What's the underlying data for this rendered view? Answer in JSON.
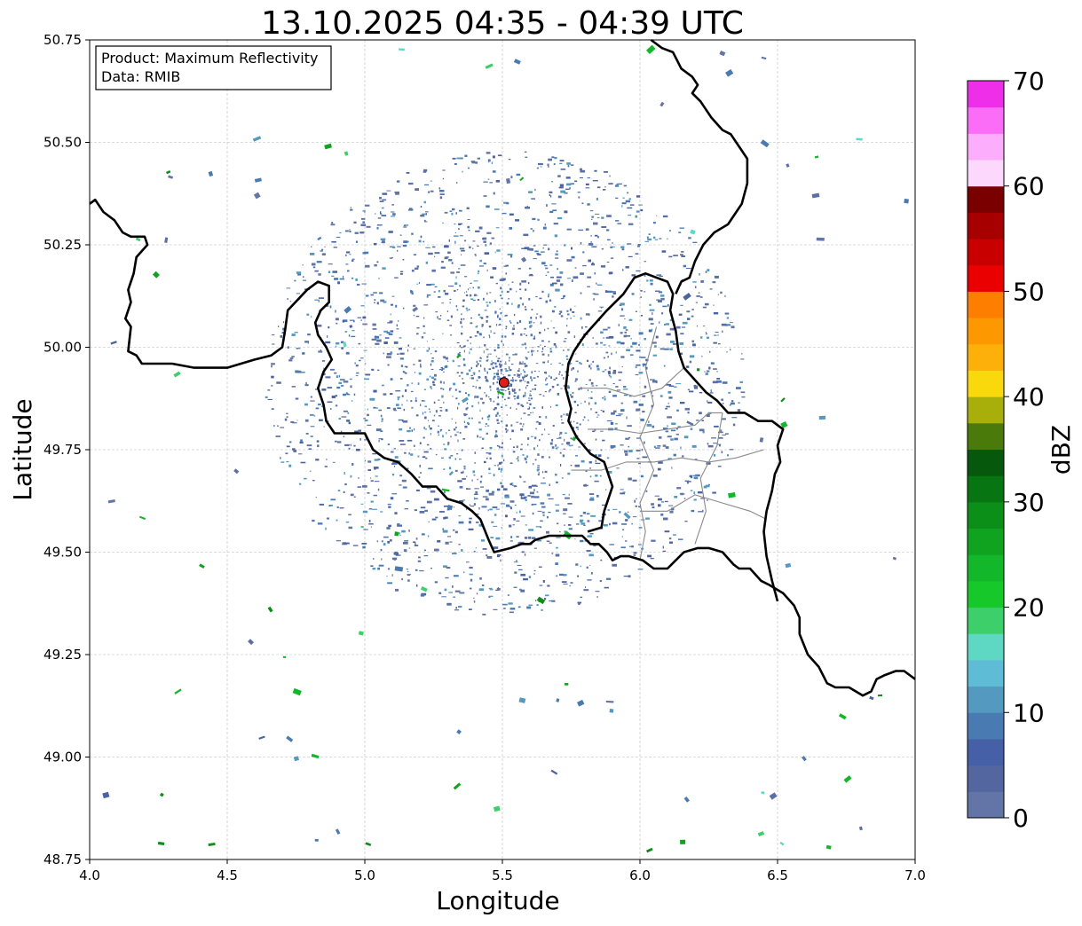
{
  "title": "13.10.2025 04:35 - 04:39 UTC",
  "info_box": {
    "product_line": "Product: Maximum Reflectivity",
    "data_line": "Data: RMIB"
  },
  "axes": {
    "xlabel": "Longitude",
    "ylabel": "Latitude",
    "xlim": [
      4.0,
      7.0
    ],
    "ylim": [
      48.75,
      50.75
    ],
    "x_ticks": [
      "4.0",
      "4.5",
      "5.0",
      "5.5",
      "6.0",
      "6.5",
      "7.0"
    ],
    "y_ticks": [
      "48.75",
      "49.00",
      "49.25",
      "49.50",
      "49.75",
      "50.00",
      "50.25",
      "50.50",
      "50.75"
    ],
    "grid": true
  },
  "radar_site": {
    "lon": 5.506,
    "lat": 49.914,
    "color": "#e21b1b"
  },
  "colorbar": {
    "label": "dBZ",
    "range": [
      0,
      70
    ],
    "ticks": [
      "0",
      "10",
      "20",
      "30",
      "40",
      "50",
      "60",
      "70"
    ],
    "step": 2.5,
    "colors": [
      "#6275a6",
      "#5366a0",
      "#4560a6",
      "#4a7ab2",
      "#5399c0",
      "#5ebcd6",
      "#5fd8c3",
      "#3ccf6a",
      "#16c82a",
      "#12b82a",
      "#0fa31f",
      "#0c8f19",
      "#077612",
      "#06580d",
      "#4a7a0a",
      "#a8af0a",
      "#f9d90b",
      "#fdb00a",
      "#fe9800",
      "#fe7e00",
      "#ea0000",
      "#c90000",
      "#a70000",
      "#7a0000",
      "#fdd8fd",
      "#fcaefc",
      "#fb6cf7",
      "#ee2ee9"
    ]
  },
  "borders": [
    [
      [
        4.0,
        50.35
      ],
      [
        4.02,
        50.36
      ],
      [
        4.05,
        50.33
      ],
      [
        4.09,
        50.31
      ],
      [
        4.12,
        50.28
      ],
      [
        4.15,
        50.27
      ],
      [
        4.2,
        50.27
      ],
      [
        4.21,
        50.25
      ],
      [
        4.17,
        50.22
      ],
      [
        4.16,
        50.18
      ],
      [
        4.14,
        50.14
      ],
      [
        4.15,
        50.11
      ],
      [
        4.13,
        50.07
      ],
      [
        4.15,
        50.05
      ],
      [
        4.14,
        49.99
      ],
      [
        4.17,
        49.98
      ],
      [
        4.19,
        49.96
      ],
      [
        4.23,
        49.96
      ],
      [
        4.3,
        49.96
      ],
      [
        4.38,
        49.95
      ],
      [
        4.44,
        49.95
      ],
      [
        4.5,
        49.95
      ],
      [
        4.55,
        49.96
      ],
      [
        4.6,
        49.97
      ],
      [
        4.66,
        49.98
      ],
      [
        4.7,
        50.0
      ],
      [
        4.71,
        50.04
      ],
      [
        4.72,
        50.09
      ],
      [
        4.79,
        50.14
      ],
      [
        4.83,
        50.16
      ],
      [
        4.87,
        50.15
      ],
      [
        4.87,
        50.11
      ],
      [
        4.84,
        50.09
      ],
      [
        4.82,
        50.06
      ],
      [
        4.83,
        50.03
      ],
      [
        4.86,
        50.0
      ],
      [
        4.88,
        49.97
      ],
      [
        4.85,
        49.94
      ],
      [
        4.83,
        49.9
      ],
      [
        4.85,
        49.86
      ],
      [
        4.86,
        49.82
      ],
      [
        4.89,
        49.79
      ],
      [
        4.93,
        49.79
      ],
      [
        5.0,
        49.79
      ],
      [
        5.03,
        49.75
      ],
      [
        5.07,
        49.73
      ],
      [
        5.12,
        49.72
      ],
      [
        5.17,
        49.69
      ],
      [
        5.21,
        49.66
      ],
      [
        5.26,
        49.66
      ],
      [
        5.3,
        49.63
      ],
      [
        5.35,
        49.62
      ],
      [
        5.39,
        49.6
      ],
      [
        5.42,
        49.58
      ],
      [
        5.45,
        49.53
      ],
      [
        5.47,
        49.5
      ],
      [
        5.53,
        49.51
      ],
      [
        5.57,
        49.52
      ],
      [
        5.6,
        49.52
      ],
      [
        5.62,
        49.53
      ],
      [
        5.67,
        49.54
      ],
      [
        5.71,
        49.54
      ],
      [
        5.75,
        49.54
      ],
      [
        5.79,
        49.54
      ],
      [
        5.82,
        49.52
      ],
      [
        5.85,
        49.52
      ],
      [
        5.88,
        49.5
      ],
      [
        5.9,
        49.48
      ],
      [
        5.93,
        49.49
      ],
      [
        5.96,
        49.49
      ],
      [
        6.01,
        49.48
      ],
      [
        6.05,
        49.46
      ],
      [
        6.1,
        49.46
      ],
      [
        6.13,
        49.48
      ],
      [
        6.16,
        49.5
      ],
      [
        6.21,
        49.51
      ],
      [
        6.25,
        49.51
      ],
      [
        6.3,
        49.5
      ],
      [
        6.34,
        49.47
      ],
      [
        6.36,
        49.46
      ],
      [
        6.4,
        49.46
      ],
      [
        6.44,
        49.43
      ],
      [
        6.47,
        49.42
      ],
      [
        6.52,
        49.4
      ],
      [
        6.56,
        49.37
      ],
      [
        6.58,
        49.34
      ],
      [
        6.58,
        49.3
      ],
      [
        6.61,
        49.25
      ],
      [
        6.65,
        49.22
      ],
      [
        6.68,
        49.18
      ],
      [
        6.71,
        49.17
      ],
      [
        6.76,
        49.17
      ],
      [
        6.81,
        49.15
      ],
      [
        6.84,
        49.16
      ],
      [
        6.86,
        49.19
      ],
      [
        6.89,
        49.2
      ],
      [
        6.93,
        49.21
      ],
      [
        6.96,
        49.21
      ],
      [
        7.0,
        49.19
      ]
    ],
    [
      [
        6.5,
        49.38
      ],
      [
        6.48,
        49.43
      ],
      [
        6.46,
        49.49
      ],
      [
        6.45,
        49.55
      ],
      [
        6.46,
        49.6
      ],
      [
        6.48,
        49.65
      ],
      [
        6.49,
        49.69
      ],
      [
        6.51,
        49.72
      ],
      [
        6.5,
        49.76
      ],
      [
        6.52,
        49.8
      ],
      [
        6.48,
        49.82
      ],
      [
        6.43,
        49.82
      ],
      [
        6.38,
        49.84
      ],
      [
        6.32,
        49.84
      ],
      [
        6.28,
        49.87
      ],
      [
        6.24,
        49.89
      ],
      [
        6.2,
        49.92
      ],
      [
        6.16,
        49.95
      ],
      [
        6.14,
        49.99
      ],
      [
        6.13,
        50.04
      ],
      [
        6.11,
        50.09
      ],
      [
        6.12,
        50.13
      ],
      [
        6.1,
        50.16
      ],
      [
        6.02,
        50.18
      ],
      [
        5.98,
        50.17
      ],
      [
        5.94,
        50.13
      ],
      [
        5.88,
        50.09
      ],
      [
        5.84,
        50.06
      ],
      [
        5.8,
        50.03
      ],
      [
        5.76,
        49.99
      ],
      [
        5.74,
        49.96
      ],
      [
        5.73,
        49.9
      ],
      [
        5.75,
        49.85
      ],
      [
        5.74,
        49.82
      ],
      [
        5.77,
        49.78
      ],
      [
        5.82,
        49.74
      ],
      [
        5.87,
        49.72
      ],
      [
        5.9,
        49.66
      ],
      [
        5.87,
        49.6
      ],
      [
        5.86,
        49.56
      ],
      [
        5.81,
        49.55
      ]
    ],
    [
      [
        6.13,
        50.13
      ],
      [
        6.15,
        50.16
      ],
      [
        6.18,
        50.17
      ],
      [
        6.2,
        50.21
      ],
      [
        6.23,
        50.25
      ],
      [
        6.27,
        50.28
      ],
      [
        6.32,
        50.3
      ],
      [
        6.35,
        50.33
      ],
      [
        6.37,
        50.35
      ],
      [
        6.39,
        50.4
      ],
      [
        6.39,
        50.46
      ],
      [
        6.36,
        50.49
      ],
      [
        6.33,
        50.52
      ],
      [
        6.3,
        50.53
      ],
      [
        6.26,
        50.56
      ],
      [
        6.22,
        50.6
      ],
      [
        6.19,
        50.62
      ],
      [
        6.21,
        50.64
      ],
      [
        6.19,
        50.66
      ],
      [
        6.15,
        50.68
      ],
      [
        6.12,
        50.72
      ],
      [
        6.08,
        50.73
      ],
      [
        6.04,
        50.75
      ]
    ]
  ]
}
